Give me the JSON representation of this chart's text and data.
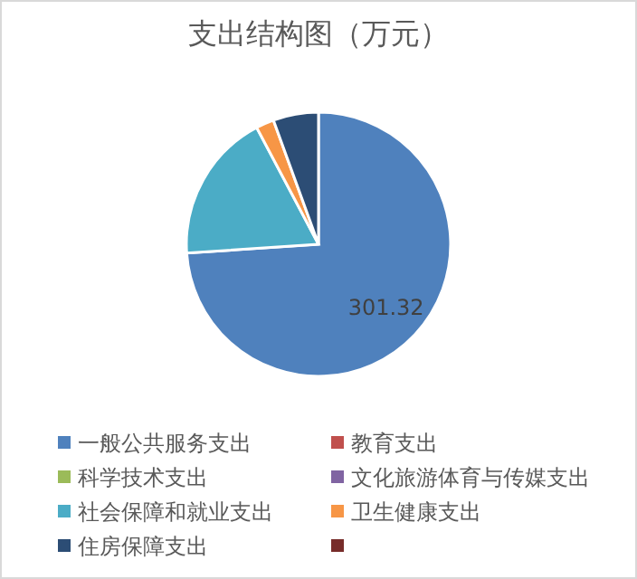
{
  "chart_data": {
    "type": "pie",
    "title": "支出结构图（万元）",
    "categories": [
      "一般公共服务支出",
      "教育支出",
      "科学技术支出",
      "文化旅游体育与传媒支出",
      "社会保障和就业支出",
      "卫生健康支出",
      "住房保障支出",
      null
    ],
    "values": [
      301.32,
      0,
      0,
      0,
      74.6,
      9,
      22.6,
      0
    ],
    "colors": [
      "#4f81bd",
      "#c0504d",
      "#9bbb59",
      "#8064a2",
      "#4bacc6",
      "#f79646",
      "#2c4d75",
      "#772c2a"
    ],
    "value_labels": [
      "301.32",
      null,
      null,
      null,
      null,
      null,
      null,
      null
    ],
    "legend": "bottom"
  }
}
